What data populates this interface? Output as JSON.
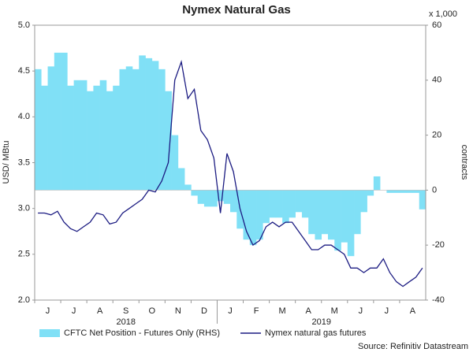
{
  "chart_data": {
    "type": "combo",
    "title": "Nymex Natural Gas",
    "ylabel": "USD/ MBtu",
    "y2label": "contracts",
    "y2_unit": "x 1,000",
    "source": "Source: Refinitiv Datastream",
    "year_labels": [
      "2018",
      "2019"
    ],
    "categories": [
      null,
      null,
      "J",
      null,
      null,
      null,
      "J",
      null,
      null,
      null,
      "A",
      null,
      null,
      null,
      "S",
      null,
      null,
      null,
      "O",
      null,
      null,
      null,
      "N",
      null,
      null,
      null,
      "D",
      null,
      null,
      null,
      "J",
      null,
      null,
      null,
      "F",
      null,
      null,
      null,
      "M",
      null,
      null,
      null,
      "A",
      null,
      null,
      null,
      "M",
      null,
      null,
      null,
      "J",
      null,
      null,
      null,
      "J",
      null,
      null,
      null,
      "A",
      null
    ],
    "series": [
      {
        "name": "CFTC Net Position - Futures Only (RHS)",
        "type": "bar",
        "axis": "y2",
        "color": "#80e0f6",
        "values": [
          44,
          38,
          45,
          50,
          50,
          38,
          40,
          40,
          36,
          38,
          40,
          36,
          38,
          44,
          45,
          44,
          49,
          48,
          47,
          44,
          36,
          20,
          8,
          2,
          -2,
          -5,
          -6,
          -6,
          -4,
          -5,
          -8,
          -14,
          -18,
          -20,
          -18,
          -12,
          -10,
          -10,
          -12,
          -10,
          -8,
          -10,
          -16,
          -18,
          -16,
          -18,
          -22,
          -19,
          -24,
          -16,
          -8,
          -2,
          5,
          0,
          -1,
          -1,
          -1,
          -1,
          -1,
          -7
        ]
      },
      {
        "name": "Nymex natural gas futures",
        "type": "line",
        "color": "#1c1c82",
        "values": [
          2.95,
          2.95,
          2.93,
          2.97,
          2.85,
          2.78,
          2.75,
          2.8,
          2.85,
          2.95,
          2.93,
          2.83,
          2.85,
          2.95,
          3.0,
          3.05,
          3.1,
          3.2,
          3.18,
          3.3,
          3.5,
          4.4,
          4.6,
          4.2,
          4.3,
          3.85,
          3.75,
          3.55,
          2.95,
          3.6,
          3.4,
          3.0,
          2.75,
          2.6,
          2.65,
          2.8,
          2.85,
          2.8,
          2.85,
          2.85,
          2.75,
          2.65,
          2.55,
          2.55,
          2.6,
          2.6,
          2.55,
          2.5,
          2.35,
          2.35,
          2.3,
          2.35,
          2.35,
          2.45,
          2.3,
          2.2,
          2.15,
          2.2,
          2.25,
          2.35
        ]
      }
    ],
    "ylim": [
      2,
      5
    ],
    "yticks": [
      {
        "value": 2,
        "label": "2.0"
      },
      2.5,
      {
        "value": 3,
        "label": "3.0"
      },
      3.5,
      {
        "value": 4,
        "label": "4.0"
      },
      4.5,
      {
        "value": 5,
        "label": "5.0"
      }
    ],
    "y2lim": [
      -40,
      60
    ],
    "y2ticks": [
      -40,
      -20,
      0,
      20,
      40,
      60
    ],
    "grid": false
  }
}
